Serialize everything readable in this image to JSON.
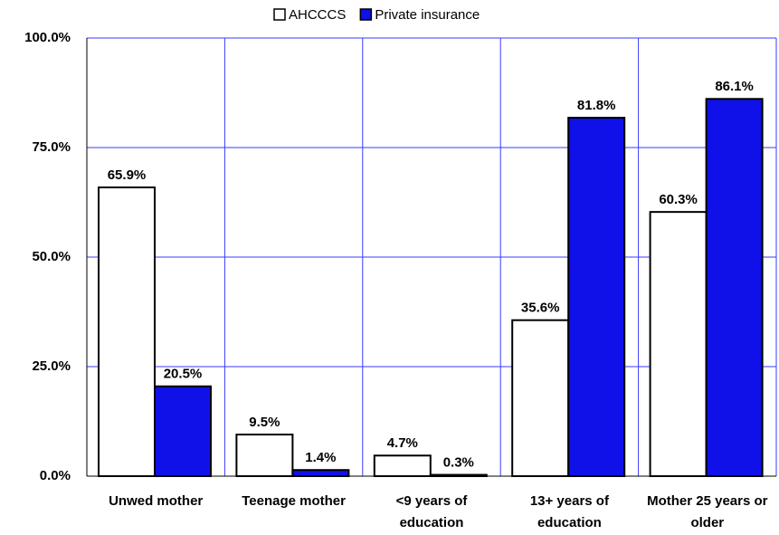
{
  "chart_data": {
    "type": "bar",
    "categories": [
      "Unwed mother",
      "Teenage mother",
      "<9 years of education",
      "13+ years of education",
      "Mother 25 years or older"
    ],
    "series": [
      {
        "name": "AHCCCS",
        "color": "#ffffff",
        "values": [
          65.9,
          9.5,
          4.7,
          35.6,
          60.3
        ],
        "value_labels": [
          "65.9%",
          "9.5%",
          "4.7%",
          "35.6%",
          "60.3%"
        ]
      },
      {
        "name": "Private insurance",
        "color": "#1010e8",
        "values": [
          20.5,
          1.4,
          0.3,
          81.8,
          86.1
        ],
        "value_labels": [
          "20.5%",
          "1.4%",
          "0.3%",
          "81.8%",
          "86.1%"
        ]
      }
    ],
    "ylim": [
      0,
      100
    ],
    "yticks": [
      {
        "value": 0,
        "label": "0.0%"
      },
      {
        "value": 25,
        "label": "25.0%"
      },
      {
        "value": 50,
        "label": "50.0%"
      },
      {
        "value": 75,
        "label": "75.0%"
      },
      {
        "value": 100,
        "label": "100.0%"
      }
    ],
    "grid": true,
    "legend": "top"
  }
}
